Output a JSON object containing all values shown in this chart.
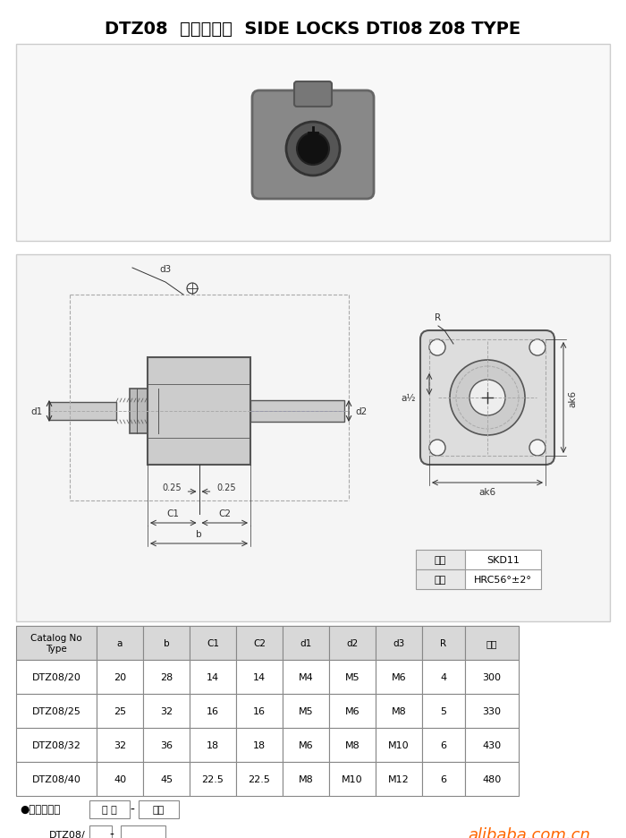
{
  "title": "DTZ08  模具定位器  SIDE LOCKS DTI08 Z08 TYPE",
  "bg_color": "#f0f0f0",
  "panel_bg": "#f5f5f5",
  "table_headers": [
    "Catalog No\nType",
    "a",
    "b",
    "C1",
    "C2",
    "d1",
    "d2",
    "d3",
    "R",
    "单价"
  ],
  "table_rows": [
    [
      "DTZ08/20",
      "20",
      "28",
      "14",
      "14",
      "M4",
      "M5",
      "M6",
      "4",
      "300"
    ],
    [
      "DTZ08/25",
      "25",
      "32",
      "16",
      "16",
      "M5",
      "M6",
      "M8",
      "5",
      "330"
    ],
    [
      "DTZ08/32",
      "32",
      "36",
      "18",
      "18",
      "M6",
      "M8",
      "M10",
      "6",
      "430"
    ],
    [
      "DTZ08/40",
      "40",
      "45",
      "22.5",
      "22.5",
      "M8",
      "M10",
      "M12",
      "6",
      "480"
    ]
  ],
  "material_label": "材质",
  "material_value": "SKD11",
  "hardness_label": "硬度",
  "hardness_value": "HRC56°±2°",
  "order_text": "●订购方法：",
  "order_code": "代 号",
  "order_qty": "数量",
  "order_prefix": "DTZ08/",
  "alibaba_text": "alibaba.com.cn",
  "alibaba_color": "#ff6600",
  "drawing_labels": {
    "d3": "d3",
    "d1": "d1",
    "d2": "d2",
    "R": "R",
    "a2": "a½",
    "ak6_right": "ak6",
    "ak6_bottom": "ak6",
    "c025_left": "0.25",
    "c025_right": "0.25",
    "C1": "C1",
    "C2": "C2",
    "b": "b"
  },
  "line_color": "#555555",
  "dim_color": "#333333",
  "dashed_color": "#aaaaaa"
}
